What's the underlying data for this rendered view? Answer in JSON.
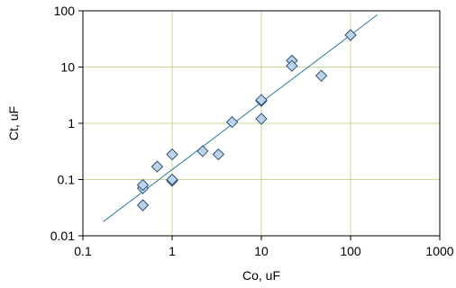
{
  "chart_data": {
    "type": "scatter",
    "title": "",
    "xlabel": "Co, uF",
    "ylabel": "Ct, uF",
    "xscale": "log",
    "yscale": "log",
    "xlim": [
      0.1,
      1000
    ],
    "ylim": [
      0.01,
      100
    ],
    "grid": true,
    "x_tick_labels": [
      "0.1",
      "1",
      "10",
      "100",
      "1000"
    ],
    "y_tick_labels": [
      "0.01",
      "0.1",
      "1",
      "10",
      "100"
    ],
    "colors": {
      "grid": "#c9d99a",
      "trendline": "#2a7a93",
      "marker_fill": "#bcd3ec",
      "marker_stroke": "#2e4f72"
    },
    "series": [
      {
        "marker": "diamond",
        "points": [
          {
            "x": 0.47,
            "y": 0.035
          },
          {
            "x": 0.47,
            "y": 0.07
          },
          {
            "x": 0.47,
            "y": 0.08
          },
          {
            "x": 0.68,
            "y": 0.17
          },
          {
            "x": 1.0,
            "y": 0.095
          },
          {
            "x": 1.0,
            "y": 0.1
          },
          {
            "x": 1.0,
            "y": 0.28
          },
          {
            "x": 2.2,
            "y": 0.32
          },
          {
            "x": 3.3,
            "y": 0.28
          },
          {
            "x": 4.7,
            "y": 1.05
          },
          {
            "x": 10,
            "y": 2.5
          },
          {
            "x": 10,
            "y": 2.6
          },
          {
            "x": 10,
            "y": 1.2
          },
          {
            "x": 22,
            "y": 13
          },
          {
            "x": 22,
            "y": 10.5
          },
          {
            "x": 47,
            "y": 7
          },
          {
            "x": 100,
            "y": 37
          }
        ]
      }
    ],
    "trendline": {
      "type": "power",
      "from": {
        "x": 0.17,
        "y": 0.018
      },
      "to": {
        "x": 200,
        "y": 85
      }
    }
  }
}
